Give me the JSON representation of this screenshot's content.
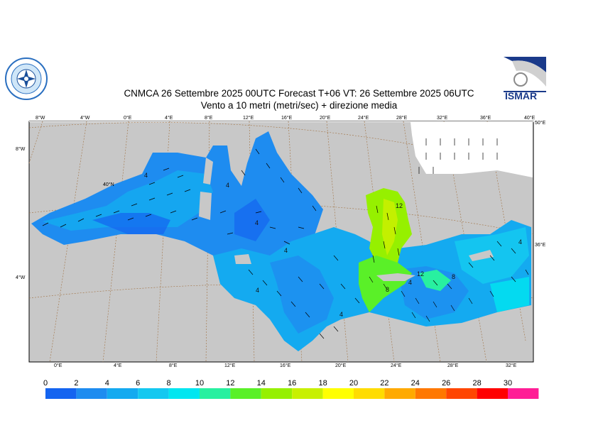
{
  "header": {
    "title_line1": "CNMCA 26 Settembre 2025 00UTC Forecast T+06 VT: 26 Settembre 2025 06UTC",
    "title_line2": "Vento a 10 metri (metri/sec) + direzione media"
  },
  "logos": {
    "left": "cnmca-round-emblem",
    "right_text": "ISMAR"
  },
  "map": {
    "top_ticks": [
      "8°W",
      "4°W",
      "0°E",
      "4°E",
      "8°E",
      "12°E",
      "16°E",
      "20°E",
      "24°E",
      "28°E",
      "32°E",
      "36°E",
      "40°E"
    ],
    "bottom_ticks": [
      "0°E",
      "4°E",
      "8°E",
      "12°E",
      "16°E",
      "20°E",
      "24°E",
      "28°E",
      "32°E"
    ],
    "left_ticks": [
      "8°W",
      "40°N",
      "4°W"
    ],
    "right_ticks": [
      "50°E",
      "36°E"
    ],
    "contour_labels": [
      "4",
      "4",
      "4",
      "4",
      "4",
      "4",
      "4",
      "4",
      "12",
      "12",
      "8",
      "8"
    ],
    "colors": {
      "land": "#c8c8c8",
      "sea_low": "#1e78f0",
      "sea_mid": "#14b4f0",
      "sea_high": "#b4f000"
    }
  },
  "colorbar": {
    "labels": [
      "0",
      "2",
      "4",
      "6",
      "8",
      "10",
      "12",
      "14",
      "16",
      "18",
      "20",
      "22",
      "24",
      "26",
      "28",
      "30"
    ],
    "colors": [
      "#1464f0",
      "#1e8cf0",
      "#14aaf0",
      "#14c8f0",
      "#00e6f0",
      "#28f0a0",
      "#5af028",
      "#96f000",
      "#c8f000",
      "#ffff00",
      "#ffdc00",
      "#ffaa00",
      "#ff7800",
      "#ff4600",
      "#ff0000",
      "#ff1e96"
    ]
  }
}
